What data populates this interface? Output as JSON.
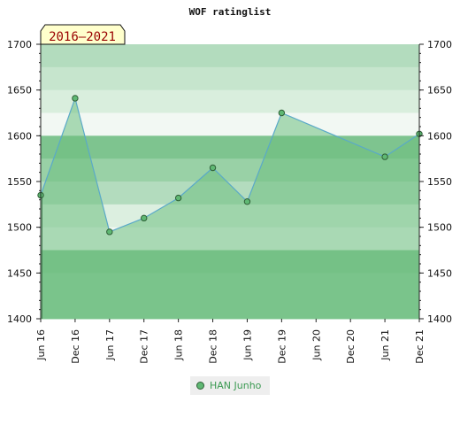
{
  "chart_data": {
    "type": "area",
    "title": "WOF ratinglist",
    "period_badge": "2016–2021",
    "xlabel": "",
    "ylabel": "",
    "x_tick_labels": [
      "Jun 16",
      "Dec 16",
      "Jun 17",
      "Dec 17",
      "Jun 18",
      "Dec 18",
      "Jun 19",
      "Dec 19",
      "Jun 20",
      "Dec 20",
      "Jun 21",
      "Dec 21"
    ],
    "ylim": [
      1400,
      1700
    ],
    "y_ticks": [
      1400,
      1450,
      1500,
      1550,
      1600,
      1650,
      1700
    ],
    "grid": "alternating horizontal bands",
    "legend_position": "bottom-center",
    "series": [
      {
        "name": "HAN Junho",
        "x": [
          "Jun 16",
          "Dec 16",
          "Jun 17",
          "Dec 17",
          "Jun 18",
          "Dec 18",
          "Jun 19",
          "Dec 19",
          "Jun 21",
          "Dec 21"
        ],
        "values": [
          1535,
          1641,
          1495,
          1510,
          1532,
          1565,
          1528,
          1625,
          1577,
          1602
        ]
      }
    ],
    "colors": {
      "line": "#5aa9c8",
      "fill": "#6dbf80",
      "marker": "#5fb873",
      "badge_bg": "#ffffcc"
    }
  }
}
